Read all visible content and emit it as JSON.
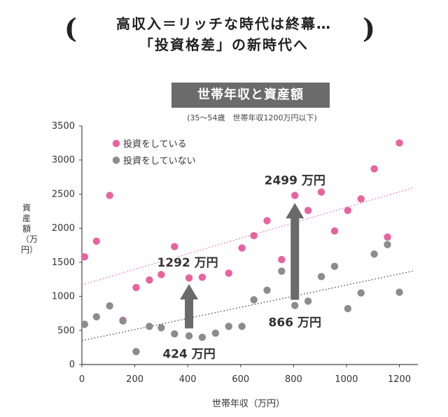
{
  "header": {
    "line1": "高収入＝リッチな時代は終幕…",
    "line2": "「投資格差」の新時代へ",
    "open_paren": "(",
    "close_paren": ")"
  },
  "chart_data": {
    "type": "scatter",
    "title": "世帯年収と資産額",
    "subtitle": "(35〜54歳　世帯年収1200万円以下)",
    "xlabel": "世帯年収（万円）",
    "ylabel": "資産額（万円）",
    "xlim": [
      0,
      1270
    ],
    "ylim": [
      0,
      3500
    ],
    "xticks": [
      0,
      200,
      400,
      600,
      800,
      1000,
      1200
    ],
    "yticks": [
      0,
      500,
      1000,
      1500,
      2000,
      2500,
      3000,
      3500
    ],
    "legend_position": "top-left",
    "series": [
      {
        "name": "投資をしている",
        "color": "#e8639f",
        "points": [
          [
            10,
            1580
          ],
          [
            55,
            1810
          ],
          [
            105,
            2480
          ],
          [
            155,
            650
          ],
          [
            205,
            1130
          ],
          [
            255,
            1240
          ],
          [
            300,
            1320
          ],
          [
            350,
            1730
          ],
          [
            405,
            1270
          ],
          [
            455,
            1280
          ],
          [
            555,
            1340
          ],
          [
            605,
            1710
          ],
          [
            650,
            1890
          ],
          [
            700,
            2110
          ],
          [
            755,
            1540
          ],
          [
            805,
            2480
          ],
          [
            855,
            2260
          ],
          [
            905,
            2530
          ],
          [
            955,
            1960
          ],
          [
            1005,
            2260
          ],
          [
            1055,
            2430
          ],
          [
            1105,
            2870
          ],
          [
            1155,
            1870
          ],
          [
            1200,
            3250
          ]
        ],
        "trend": [
          [
            0,
            1170
          ],
          [
            1250,
            2590
          ]
        ]
      },
      {
        "name": "投資をしていない",
        "color": "#8c8c8c",
        "points": [
          [
            10,
            590
          ],
          [
            55,
            700
          ],
          [
            105,
            860
          ],
          [
            155,
            640
          ],
          [
            205,
            190
          ],
          [
            255,
            560
          ],
          [
            300,
            540
          ],
          [
            350,
            450
          ],
          [
            405,
            420
          ],
          [
            455,
            400
          ],
          [
            505,
            460
          ],
          [
            555,
            560
          ],
          [
            605,
            560
          ],
          [
            650,
            950
          ],
          [
            700,
            1090
          ],
          [
            755,
            1370
          ],
          [
            805,
            866
          ],
          [
            855,
            930
          ],
          [
            905,
            1290
          ],
          [
            955,
            1440
          ],
          [
            1005,
            820
          ],
          [
            1055,
            1050
          ],
          [
            1105,
            1620
          ],
          [
            1155,
            1760
          ],
          [
            1200,
            1060
          ]
        ],
        "trend": [
          [
            0,
            350
          ],
          [
            1250,
            1370
          ]
        ]
      }
    ],
    "annotations": [
      {
        "text": "1292 万円",
        "x": 405,
        "y": 1292
      },
      {
        "text": "424 万円",
        "x": 405,
        "y": 424
      },
      {
        "text": "2499 万円",
        "x": 805,
        "y": 2499
      },
      {
        "text": "866 万円",
        "x": 805,
        "y": 866
      }
    ],
    "arrows": [
      {
        "x": 405,
        "from": 530,
        "to": 1180
      },
      {
        "x": 805,
        "from": 950,
        "to": 2370
      }
    ]
  }
}
